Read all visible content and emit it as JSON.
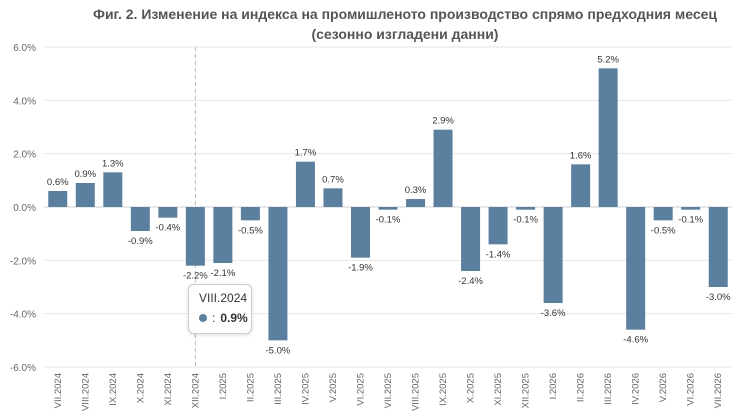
{
  "colors": {
    "bar": "#5b7f9e",
    "grid": "#e6e6e6",
    "text": "#555555"
  },
  "tooltip": {
    "category": "VIII.2024",
    "separator": ":",
    "value": "0.9%"
  },
  "chart_data": {
    "type": "bar",
    "title": "Фиг. 2. Изменение на индекса на промишленото производство спрямо предходния месец",
    "subtitle": "(сезонно изгладени данни)",
    "xlabel": "",
    "ylabel": "",
    "ylim": [
      -6,
      6
    ],
    "yticks": [
      "6.0%",
      "4.0%",
      "2.0%",
      "0.0%",
      "-2.0%",
      "-4.0%",
      "-6.0%"
    ],
    "grid": true,
    "categories": [
      "VII.2024",
      "VIII.2024",
      "IX.2024",
      "X.2024",
      "XI.2024",
      "XII.2024",
      "I.2025",
      "II.2025",
      "III.2025",
      "IV.2025",
      "V.2025",
      "VI.2025",
      "VII.2025",
      "VIII.2025",
      "IX.2025",
      "X.2025",
      "XI.2025",
      "XII.2025",
      "I.2026",
      "II.2026",
      "III.2026",
      "IV.2026",
      "V.2026",
      "VI.2026",
      "VII.2026"
    ],
    "values": [
      0.6,
      0.9,
      1.3,
      -0.9,
      -0.4,
      -2.2,
      -2.1,
      -0.5,
      -5.0,
      1.7,
      0.7,
      -1.9,
      -0.1,
      0.3,
      2.9,
      -2.4,
      -1.4,
      -0.1,
      -3.6,
      1.6,
      5.2,
      -4.6,
      -0.5,
      -0.1,
      -3.0
    ],
    "labels": [
      "0.6%",
      "0.9%",
      "1.3%",
      "-0.9%",
      "-0.4%",
      "-2.2%",
      "-2.1%",
      "-0.5%",
      "-5.0%",
      "1.7%",
      "0.7%",
      "-1.9%",
      "-0.1%",
      "0.3%",
      "2.9%",
      "-2.4%",
      "-1.4%",
      "-0.1%",
      "-3.6%",
      "1.6%",
      "5.2%",
      "-4.6%",
      "-0.5%",
      "-0.1%",
      "-3.0%"
    ],
    "crosshair_category": "XII.2024"
  }
}
